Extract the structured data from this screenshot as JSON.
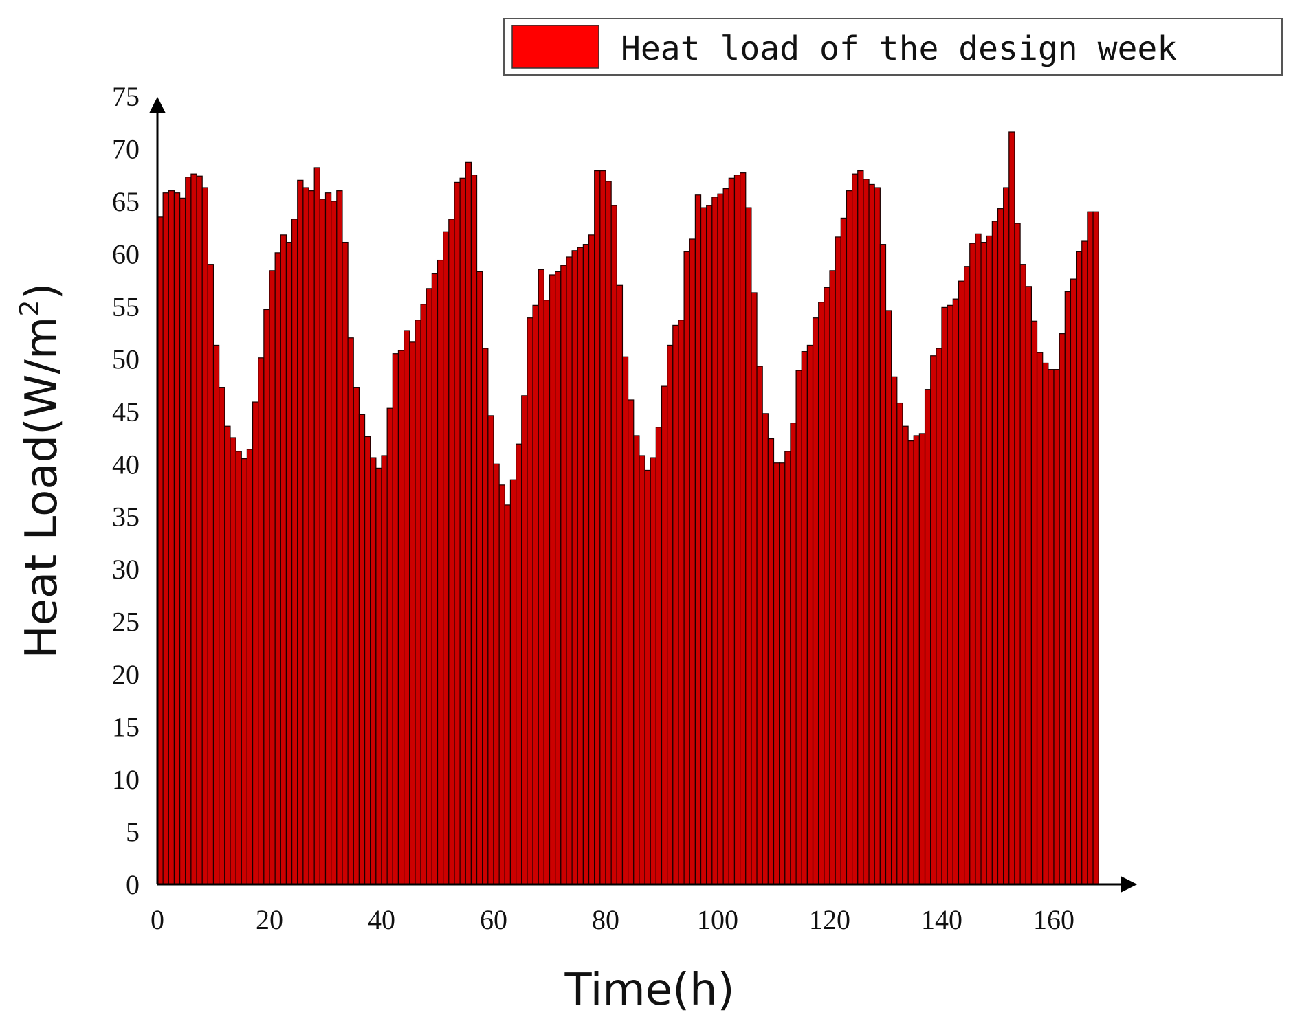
{
  "chart_data": {
    "type": "bar",
    "xlabel": "Time(h)",
    "ylabel": "Heat Load(W/m",
    "ylabel_superscript": "2",
    "ylabel_suffix": ")",
    "ylim": [
      0,
      75
    ],
    "xlim": [
      0,
      168
    ],
    "yticks": [
      "0",
      "5",
      "10",
      "15",
      "20",
      "25",
      "30",
      "35",
      "40",
      "45",
      "50",
      "55",
      "60",
      "65",
      "70",
      "75"
    ],
    "xticks": [
      "0",
      "20",
      "40",
      "60",
      "80",
      "100",
      "120",
      "140",
      "160"
    ],
    "grid": false,
    "legend_position": "top-right",
    "series": [
      {
        "name": "Heat load of the design week",
        "color": "#cc0000",
        "legend_color": "#ff0000",
        "values": [
          63.5,
          65.8,
          66,
          65.8,
          65.3,
          67.3,
          67.6,
          67.4,
          66.3,
          59,
          51.3,
          47.3,
          43.6,
          42.5,
          41.2,
          40.5,
          41.4,
          45.9,
          50.1,
          54.7,
          58.4,
          60.1,
          61.8,
          61.1,
          63.3,
          67,
          66.3,
          66,
          68.2,
          65.2,
          65.8,
          65,
          66,
          61.1,
          52,
          47.3,
          44.7,
          42.6,
          40.6,
          39.6,
          40.8,
          45.3,
          50.5,
          50.8,
          52.7,
          51.6,
          53.7,
          55.2,
          56.7,
          58.1,
          59.4,
          62.1,
          63.3,
          66.8,
          67.2,
          68.7,
          67.5,
          58.3,
          51,
          44.6,
          40,
          38,
          36.1,
          38.5,
          41.9,
          46.5,
          53.9,
          55.1,
          58.5,
          55.6,
          58,
          58.3,
          58.9,
          59.7,
          60.3,
          60.6,
          60.9,
          61.8,
          67.9,
          67.9,
          66.9,
          64.6,
          57,
          50.2,
          46.1,
          42.7,
          40.8,
          39.4,
          40.6,
          43.5,
          47.4,
          51.3,
          53.2,
          53.7,
          60.2,
          61.4,
          65.6,
          64.4,
          64.6,
          65.4,
          65.7,
          66.2,
          67.2,
          67.5,
          67.7,
          64.4,
          56.3,
          49.3,
          44.8,
          42.4,
          40.1,
          40.1,
          41.2,
          43.9,
          48.9,
          50.7,
          51.3,
          53.9,
          55.4,
          56.8,
          58.4,
          61.6,
          63.4,
          66,
          67.6,
          67.9,
          67.1,
          66.6,
          66.3,
          60.9,
          54.6,
          48.3,
          45.8,
          43.6,
          42.2,
          42.7,
          42.9,
          47.1,
          50.3,
          51,
          54.9,
          55.1,
          55.7,
          57.4,
          58.8,
          61,
          61.9,
          61.1,
          61.7,
          63.1,
          64.3,
          66.3,
          71.6,
          62.9,
          59,
          56.9,
          53.6,
          50.6,
          49.6,
          49,
          49,
          52.4,
          56.4,
          57.6,
          60.2,
          61.2,
          64,
          64
        ]
      }
    ]
  }
}
